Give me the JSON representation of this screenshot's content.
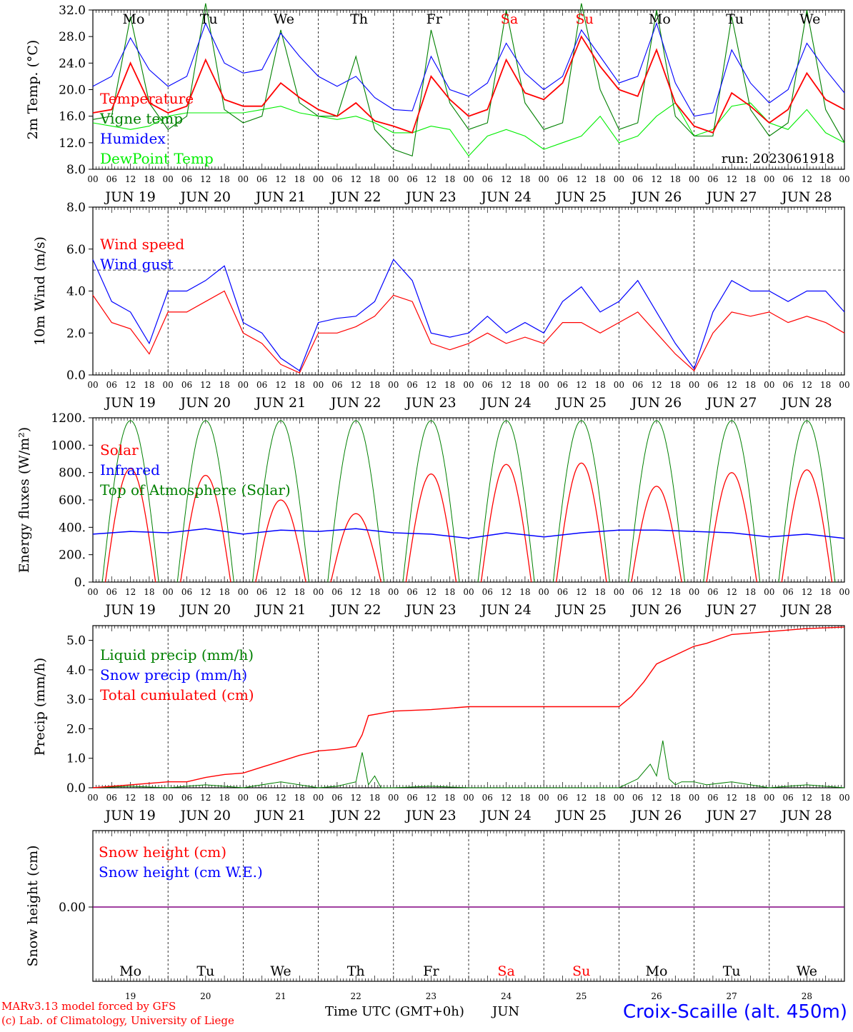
{
  "run_label": "run: 2023061918",
  "days": {
    "abbr": [
      "Mo",
      "Tu",
      "We",
      "Th",
      "Fr",
      "Sa",
      "Su",
      "Mo",
      "Tu",
      "We"
    ],
    "abbr_colors": [
      "#000000",
      "#000000",
      "#000000",
      "#000000",
      "#000000",
      "#ff0000",
      "#ff0000",
      "#000000",
      "#000000",
      "#000000"
    ],
    "date_labels": [
      "JUN 19",
      "JUN 20",
      "JUN 21",
      "JUN 22",
      "JUN 23",
      "JUN 24",
      "JUN 25",
      "JUN 26",
      "JUN 27",
      "JUN 28"
    ],
    "day_numbers": [
      "19",
      "20",
      "21",
      "22",
      "23",
      "24",
      "25",
      "26",
      "27",
      "28"
    ],
    "hour_ticks": [
      "00",
      "06",
      "12",
      "18"
    ],
    "final_hour": "00"
  },
  "footer": {
    "model": "MARv3.13 model forced by GFS",
    "lab": "(c) Lab. of Climatology, University of Liege",
    "xlabel": "Time UTC (GMT+0h)",
    "month": "JUN",
    "station": "Croix-Scaille (alt. 450m)"
  },
  "colors": {
    "red": "#ff0000",
    "green": "#008000",
    "blue": "#0000ff",
    "lightgreen": "#00ee00",
    "purple": "#800080"
  },
  "chart_data": [
    {
      "type": "line",
      "ylabel": "2m Temp. (°C)",
      "ylim": [
        8,
        32
      ],
      "yticks": [
        "32.0",
        "28.0",
        "24.0",
        "20.0",
        "16.0",
        "12.0",
        "8.0"
      ],
      "x_hours": [
        0,
        6,
        12,
        18,
        24,
        30,
        36,
        42,
        48,
        54,
        60,
        66,
        72,
        78,
        84,
        90,
        96,
        102,
        108,
        114,
        120,
        126,
        132,
        138,
        144,
        150,
        156,
        162,
        168,
        174,
        180,
        186,
        192,
        198,
        204,
        210,
        216,
        222,
        228,
        234,
        240
      ],
      "series": [
        {
          "name": "Temperature",
          "color": "#ff0000",
          "values": [
            16.5,
            17,
            24,
            18,
            16.5,
            17.5,
            24.5,
            18.5,
            17.5,
            17.5,
            21,
            18.8,
            17,
            16,
            18,
            15.3,
            14.5,
            13.5,
            22,
            18.5,
            16,
            17,
            24.5,
            19.5,
            18.5,
            21,
            28,
            23.5,
            20,
            19,
            26,
            18,
            14.5,
            13.5,
            19.5,
            17.5,
            15,
            17,
            22.5,
            18.5,
            17
          ]
        },
        {
          "name": "Vigne temp",
          "color": "#008000",
          "values": [
            15.5,
            16,
            31,
            18,
            14,
            16,
            33,
            17,
            15,
            16,
            29,
            18,
            16,
            16,
            25,
            14,
            11,
            10,
            29,
            18,
            14,
            15,
            32,
            18,
            14,
            15,
            33,
            20,
            14,
            15,
            32,
            16,
            13,
            13,
            31,
            17,
            13,
            15,
            32,
            17,
            12
          ]
        },
        {
          "name": "Humidex",
          "color": "#0000ff",
          "values": [
            20.5,
            22,
            27.8,
            23,
            20.5,
            22,
            30,
            24,
            22.5,
            23,
            28.5,
            25,
            22,
            20.5,
            22,
            18.8,
            17,
            16.8,
            25,
            20,
            19,
            21,
            27,
            22.5,
            20,
            22,
            29,
            25,
            21,
            22,
            30,
            21,
            16,
            16.5,
            26,
            21,
            18,
            20,
            27,
            23,
            19.5
          ]
        },
        {
          "name": "DewPoint Temp",
          "color": "#00ee00",
          "values": [
            15,
            14.5,
            14,
            14.5,
            16,
            16.5,
            16.5,
            16.5,
            16.5,
            17,
            17.5,
            16.5,
            16,
            15.5,
            16,
            15,
            13.5,
            13.5,
            14.5,
            14,
            10,
            13,
            14,
            13,
            11,
            12,
            13,
            16,
            12,
            13,
            16,
            18,
            13,
            14,
            17.5,
            18,
            15,
            14,
            17,
            13.5,
            12
          ]
        }
      ]
    },
    {
      "type": "line",
      "ylabel": "10m Wind (m/s)",
      "ylim": [
        0,
        8
      ],
      "yticks": [
        "8.0",
        "6.0",
        "4.0",
        "2.0",
        "0.0"
      ],
      "reference_line": 5,
      "x_hours": [
        0,
        6,
        12,
        18,
        24,
        30,
        36,
        42,
        48,
        54,
        60,
        66,
        72,
        78,
        84,
        90,
        96,
        102,
        108,
        114,
        120,
        126,
        132,
        138,
        144,
        150,
        156,
        162,
        168,
        174,
        180,
        186,
        192,
        198,
        204,
        210,
        216,
        222,
        228,
        234,
        240
      ],
      "series": [
        {
          "name": "Wind speed",
          "color": "#ff0000",
          "values": [
            3.8,
            2.5,
            2.2,
            1,
            3,
            3,
            3.5,
            4,
            2,
            1.5,
            0.5,
            0.1,
            2,
            2,
            2.3,
            2.8,
            3.8,
            3.5,
            1.5,
            1.2,
            1.5,
            2,
            1.5,
            1.8,
            1.5,
            2.5,
            2.5,
            2,
            2.5,
            3,
            2,
            1,
            0.2,
            2,
            3,
            2.8,
            3,
            2.5,
            2.8,
            2.5,
            2
          ]
        },
        {
          "name": "Wind gust",
          "color": "#0000ff",
          "values": [
            5.5,
            3.5,
            3,
            1.5,
            4,
            4,
            4.5,
            5.2,
            2.5,
            2,
            0.8,
            0.2,
            2.5,
            2.7,
            2.8,
            3.5,
            5.5,
            4.5,
            2,
            1.8,
            2,
            2.8,
            2,
            2.5,
            2,
            3.5,
            4.2,
            3,
            3.5,
            4.5,
            3,
            1.5,
            0.3,
            3,
            4.5,
            4,
            4,
            3.5,
            4,
            4,
            3
          ]
        }
      ]
    },
    {
      "type": "line",
      "ylabel": "Energy fluxes (W/m²)",
      "ylim": [
        0,
        1200
      ],
      "yticks": [
        "1200.",
        "1000.",
        "800.",
        "600.",
        "400.",
        "200.",
        "0."
      ],
      "series": [
        {
          "name": "Solar",
          "color": "#ff0000",
          "day_peaks": [
            830,
            780,
            600,
            500,
            790,
            860,
            870,
            700,
            800,
            820
          ]
        },
        {
          "name": "Infrared",
          "color": "#0000ff",
          "x_hours": [
            0,
            12,
            24,
            36,
            48,
            60,
            72,
            84,
            96,
            108,
            120,
            132,
            144,
            156,
            168,
            180,
            192,
            204,
            216,
            228,
            240
          ],
          "values": [
            350,
            370,
            360,
            390,
            350,
            380,
            370,
            390,
            360,
            350,
            320,
            360,
            330,
            360,
            380,
            380,
            370,
            360,
            330,
            350,
            320
          ]
        },
        {
          "name": "Top of Atmosphere (Solar)",
          "color": "#008000",
          "day_peak": 1180
        }
      ]
    },
    {
      "type": "line",
      "ylabel": "Precip (mm/h)",
      "ylim": [
        0,
        5.5
      ],
      "yticks": [
        "5.0",
        "4.0",
        "3.0",
        "2.0",
        "1.0",
        "0.0"
      ],
      "series": [
        {
          "name": "Liquid precip (mm/h)",
          "color": "#008000",
          "x_hours": [
            0,
            12,
            24,
            36,
            48,
            60,
            72,
            78,
            84,
            86,
            88,
            90,
            92,
            96,
            108,
            120,
            144,
            168,
            174,
            178,
            180,
            182,
            184,
            186,
            188,
            192,
            196,
            204,
            216,
            228,
            240
          ],
          "values": [
            0,
            0.05,
            0,
            0.1,
            0,
            0.2,
            0,
            0.05,
            0.2,
            1.2,
            0.1,
            0.4,
            0,
            0,
            0.05,
            0,
            0,
            0,
            0.3,
            0.8,
            0.4,
            1.6,
            0.3,
            0.1,
            0.2,
            0.2,
            0.1,
            0.2,
            0,
            0.1,
            0
          ]
        },
        {
          "name": "Snow precip (mm/h)",
          "color": "#0000ff",
          "values": []
        },
        {
          "name": "Total cumulated (cm)",
          "color": "#ff0000",
          "x_hours": [
            0,
            6,
            12,
            18,
            24,
            30,
            36,
            42,
            48,
            54,
            60,
            66,
            72,
            78,
            84,
            86,
            88,
            96,
            108,
            120,
            132,
            144,
            156,
            168,
            172,
            176,
            180,
            184,
            188,
            192,
            196,
            204,
            216,
            228,
            240
          ],
          "values": [
            0,
            0.05,
            0.1,
            0.15,
            0.2,
            0.2,
            0.35,
            0.45,
            0.5,
            0.7,
            0.9,
            1.1,
            1.25,
            1.3,
            1.4,
            1.8,
            2.45,
            2.6,
            2.65,
            2.75,
            2.75,
            2.75,
            2.75,
            2.75,
            3.1,
            3.6,
            4.2,
            4.4,
            4.6,
            4.8,
            4.9,
            5.2,
            5.3,
            5.4,
            5.45
          ]
        }
      ]
    },
    {
      "type": "line",
      "ylabel": "Snow height (cm)",
      "ytick_label": "0.00",
      "series": [
        {
          "name": "Snow height (cm)",
          "color": "#ff0000",
          "values": [
            0
          ]
        },
        {
          "name": "Snow height (cm W.E.)",
          "color": "#0000ff",
          "values": [
            0
          ]
        }
      ]
    }
  ]
}
